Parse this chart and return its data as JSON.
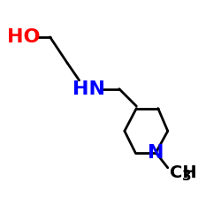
{
  "background_color": "#ffffff",
  "bond_color": "#000000",
  "N_color": "#0000ff",
  "O_color": "#ff0000",
  "lw": 2.0,
  "figsize": [
    2.5,
    2.5
  ],
  "dpi": 100,
  "ho_label": "HO",
  "hn_label": "HN",
  "n_label": "N",
  "ch3_label": "CH",
  "ch3_sub": "3",
  "label_fontsize": 16,
  "ch3_fontsize": 14
}
